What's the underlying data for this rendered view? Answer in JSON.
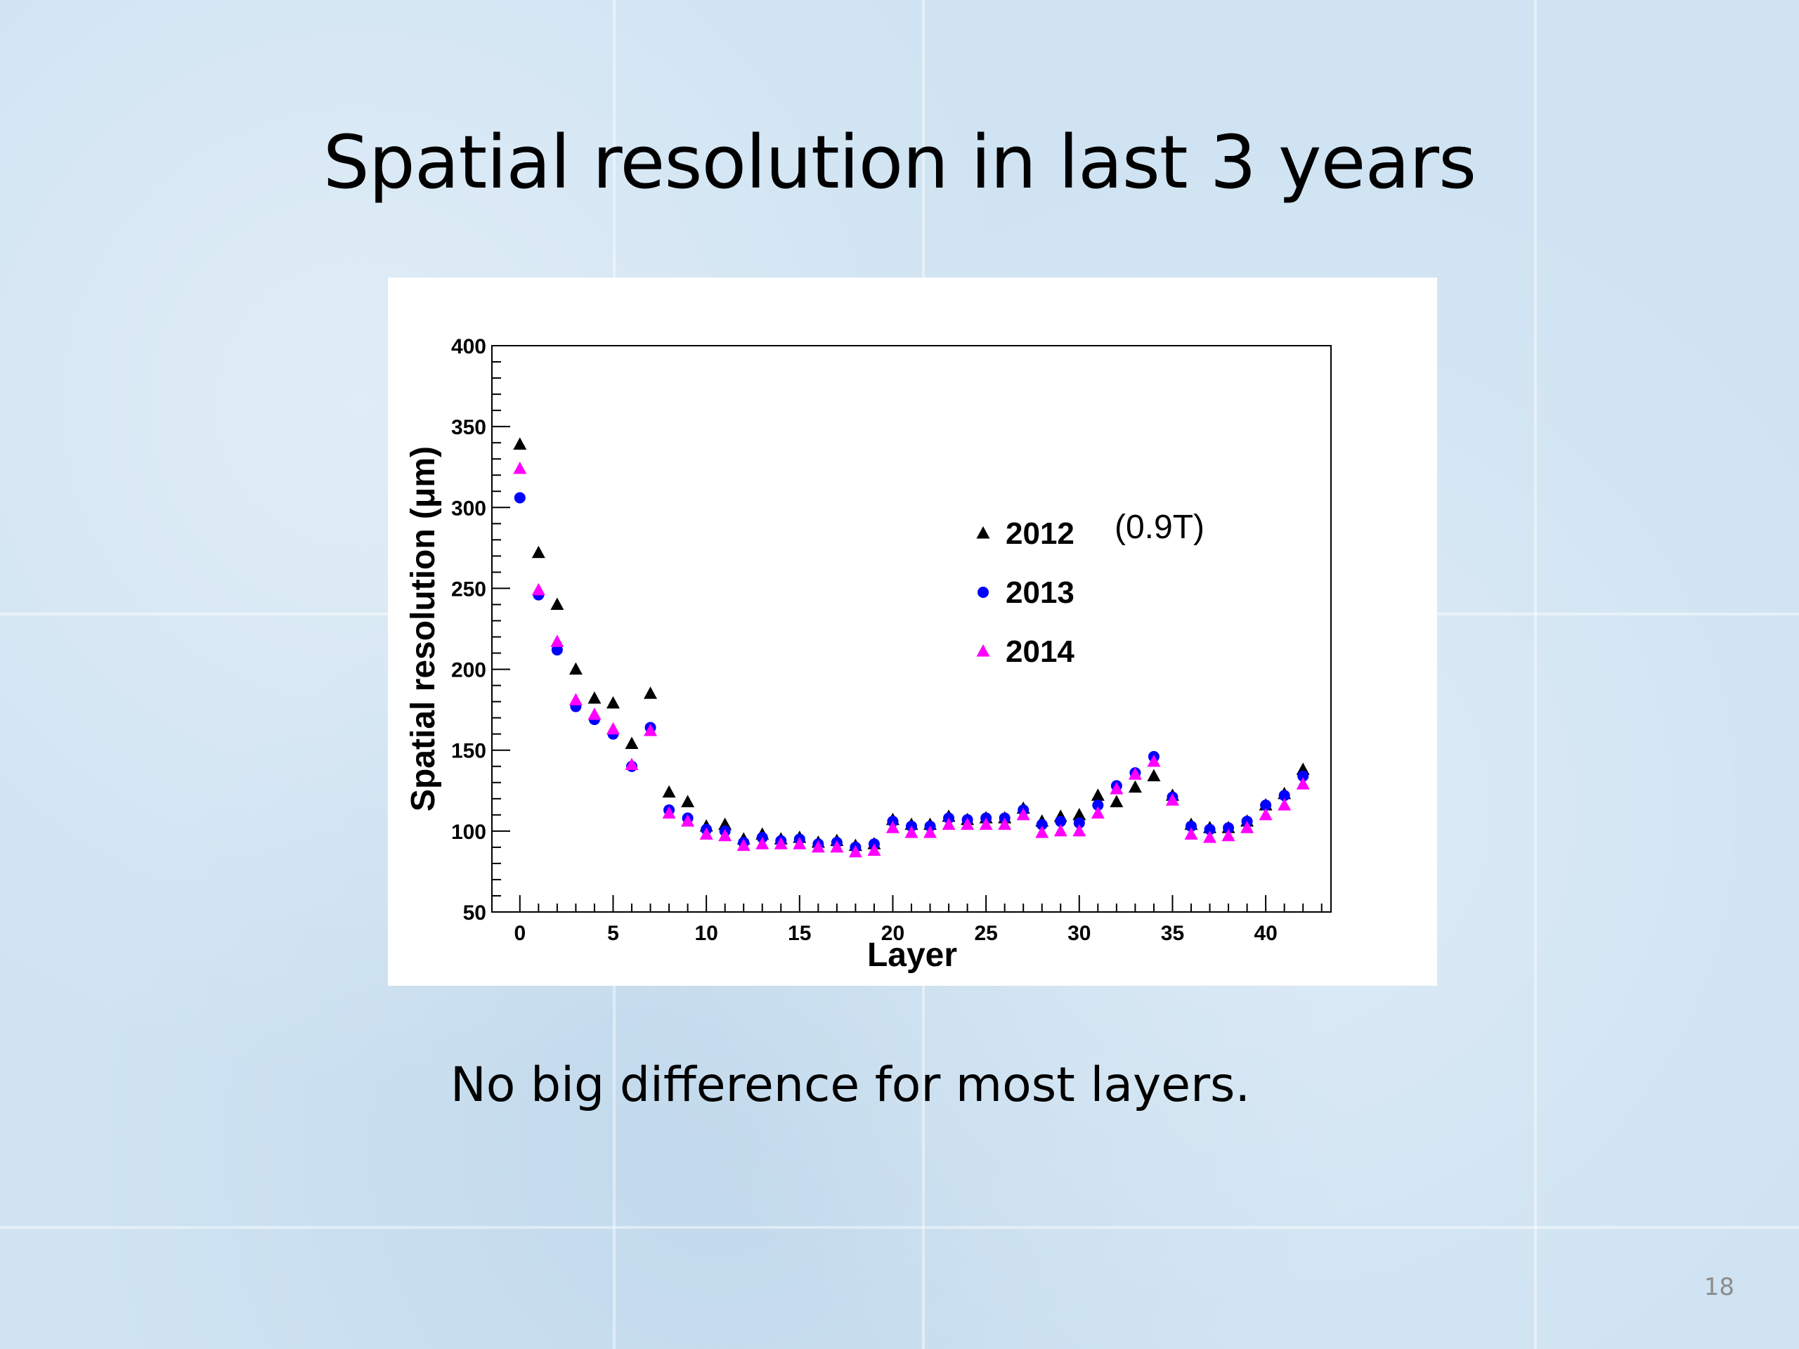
{
  "slide": {
    "title": "Spatial resolution in last 3 years",
    "subtitle": "No big difference for most layers.",
    "page_number": "18"
  },
  "chart_data": {
    "type": "scatter",
    "xlabel": "Layer",
    "ylabel": "Spatial resolution (μm)",
    "xlim": [
      -1.5,
      43.5
    ],
    "ylim": [
      50,
      400
    ],
    "x_ticks": [
      0,
      5,
      10,
      15,
      20,
      25,
      30,
      35,
      40
    ],
    "y_ticks": [
      50,
      100,
      150,
      200,
      250,
      300,
      350,
      400
    ],
    "legend_position": "upper-right",
    "annotation": "(0.9T)",
    "x": [
      0,
      1,
      2,
      3,
      4,
      5,
      6,
      7,
      8,
      9,
      10,
      11,
      12,
      13,
      14,
      15,
      16,
      17,
      18,
      19,
      20,
      21,
      22,
      23,
      24,
      25,
      26,
      27,
      28,
      29,
      30,
      31,
      32,
      33,
      34,
      35,
      36,
      37,
      38,
      39,
      40,
      41,
      42
    ],
    "series": [
      {
        "name": "2012",
        "marker": "triangle",
        "color": "#000000",
        "values": [
          339,
          272,
          240,
          200,
          182,
          179,
          154,
          185,
          124,
          118,
          103,
          104,
          95,
          98,
          95,
          96,
          93,
          94,
          91,
          92,
          107,
          104,
          104,
          109,
          107,
          108,
          108,
          114,
          106,
          109,
          110,
          122,
          118,
          127,
          134,
          122,
          104,
          102,
          102,
          106,
          116,
          123,
          138
        ]
      },
      {
        "name": "2013",
        "marker": "circle",
        "color": "#0000ff",
        "values": [
          306,
          246,
          212,
          177,
          169,
          160,
          140,
          164,
          113,
          108,
          101,
          100,
          93,
          96,
          94,
          95,
          92,
          93,
          90,
          92,
          106,
          103,
          103,
          108,
          107,
          108,
          108,
          113,
          104,
          106,
          105,
          116,
          128,
          136,
          146,
          121,
          103,
          101,
          102,
          106,
          116,
          122,
          134
        ]
      },
      {
        "name": "2014",
        "marker": "triangle",
        "color": "#ff00ff",
        "values": [
          324,
          249,
          217,
          181,
          172,
          163,
          141,
          162,
          111,
          106,
          98,
          97,
          91,
          92,
          92,
          92,
          90,
          90,
          87,
          88,
          102,
          99,
          99,
          104,
          104,
          104,
          104,
          110,
          99,
          100,
          100,
          111,
          126,
          135,
          143,
          119,
          98,
          96,
          97,
          102,
          110,
          116,
          129
        ]
      }
    ]
  }
}
